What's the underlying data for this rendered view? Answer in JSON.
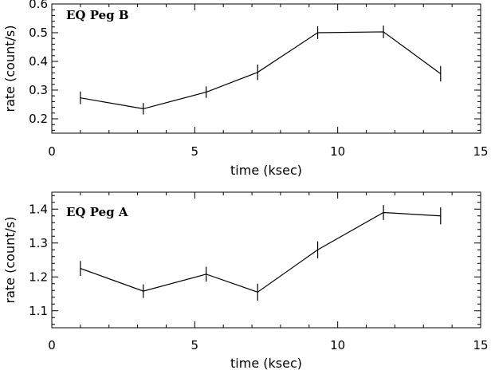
{
  "chart_data": [
    {
      "type": "line",
      "title": "EQ Peg B",
      "xlabel": "time (ksec)",
      "ylabel": "rate (count/s)",
      "xlim": [
        0,
        15
      ],
      "ylim": [
        0.15,
        0.6
      ],
      "xticks": [
        0,
        5,
        10,
        15
      ],
      "xtick_labels": [
        "0",
        "5",
        "10",
        "15"
      ],
      "yticks": [
        0.2,
        0.3,
        0.4,
        0.5,
        0.6
      ],
      "ytick_labels": [
        "0.2",
        "0.3",
        "0.4",
        "0.5",
        "0.6"
      ],
      "grid": false,
      "series": [
        {
          "x": [
            1.0,
            3.2,
            5.4,
            7.2,
            9.3,
            11.6,
            13.6
          ],
          "y": [
            0.273,
            0.235,
            0.293,
            0.362,
            0.5,
            0.503,
            0.357
          ],
          "err": [
            0.022,
            0.02,
            0.02,
            0.027,
            0.022,
            0.022,
            0.027
          ]
        }
      ]
    },
    {
      "type": "line",
      "title": "EQ Peg A",
      "xlabel": "time (ksec)",
      "ylabel": "rate (count/s)",
      "xlim": [
        0,
        15
      ],
      "ylim": [
        1.05,
        1.45
      ],
      "xticks": [
        0,
        5,
        10,
        15
      ],
      "xtick_labels": [
        "0",
        "5",
        "10",
        "15"
      ],
      "yticks": [
        1.1,
        1.2,
        1.3,
        1.4
      ],
      "ytick_labels": [
        "1.1",
        "1.2",
        "1.3",
        "1.4"
      ],
      "grid": false,
      "series": [
        {
          "x": [
            1.0,
            3.2,
            5.4,
            7.2,
            9.3,
            11.6,
            13.6
          ],
          "y": [
            1.225,
            1.158,
            1.208,
            1.155,
            1.28,
            1.39,
            1.38
          ],
          "err": [
            0.022,
            0.02,
            0.022,
            0.025,
            0.025,
            0.022,
            0.025
          ]
        }
      ]
    }
  ]
}
